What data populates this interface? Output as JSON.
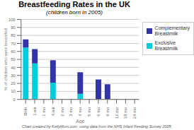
{
  "chart_data": {
    "type": "bar",
    "title": "Breastfeeding Rates in the UK",
    "subtitle": "(children born in 2005)",
    "x_label": "Age",
    "y_label": "% of children who were breastfed",
    "annotations": [
      "Chart created by KellyMom.com  using data from the NHS Infant Feeding Survey 2005."
    ],
    "categories": [
      "Birth",
      "1 wk",
      "1 mo",
      "6 wk",
      "2 mo",
      "3 mo",
      "4 mo",
      "5 mo",
      "6 mo",
      "9 mo",
      "12 mo",
      "18 mo",
      "24 mo"
    ],
    "series": [
      {
        "name": "Exclusive\nBreastmilk",
        "color": "#00CCDD",
        "values": [
          65,
          45,
          0,
          21,
          0,
          0,
          7,
          0,
          0,
          0,
          0,
          0,
          0
        ]
      },
      {
        "name": "Complementary\nBreastmilk",
        "color": "#3333AA",
        "values": [
          10,
          18,
          0,
          28,
          0,
          0,
          27,
          0,
          25,
          19,
          0,
          0,
          0
        ]
      }
    ],
    "stacked": true,
    "ylim": [
      0,
      100
    ],
    "yticks": [
      0,
      10,
      20,
      30,
      40,
      50,
      60,
      70,
      80,
      90,
      100
    ],
    "grid": true,
    "legend": "right"
  }
}
